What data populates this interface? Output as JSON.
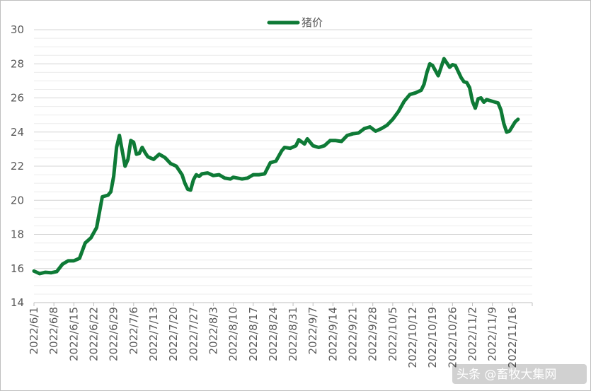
{
  "chart_data": {
    "type": "line",
    "title": "",
    "xlabel": "",
    "ylabel": "",
    "ylim": [
      14,
      30
    ],
    "y_ticks": [
      14,
      16,
      18,
      20,
      22,
      24,
      26,
      28,
      30
    ],
    "minor_grid": true,
    "legend_position": "top-center",
    "categories": [
      "2022/6/1",
      "2022/6/8",
      "2022/6/15",
      "2022/6/22",
      "2022/6/29",
      "2022/7/6",
      "2022/7/13",
      "2022/7/20",
      "2022/7/27",
      "2022/8/3",
      "2022/8/10",
      "2022/8/17",
      "2022/8/24",
      "2022/8/31",
      "2022/9/7",
      "2022/9/14",
      "2022/9/21",
      "2022/9/28",
      "2022/10/5",
      "2022/10/12",
      "2022/10/19",
      "2022/10/26",
      "2022/11/2",
      "2022/11/9",
      "2022/11/16"
    ],
    "series": [
      {
        "name": "猪价",
        "color": "#0e7a36",
        "points": [
          [
            "2022/6/1",
            15.85
          ],
          [
            "2022/6/3",
            15.7
          ],
          [
            "2022/6/5",
            15.78
          ],
          [
            "2022/6/7",
            15.75
          ],
          [
            "2022/6/9",
            15.82
          ],
          [
            "2022/6/11",
            16.25
          ],
          [
            "2022/6/13",
            16.45
          ],
          [
            "2022/6/15",
            16.45
          ],
          [
            "2022/6/17",
            16.6
          ],
          [
            "2022/6/19",
            17.5
          ],
          [
            "2022/6/21",
            17.8
          ],
          [
            "2022/6/23",
            18.4
          ],
          [
            "2022/6/25",
            20.2
          ],
          [
            "2022/6/27",
            20.3
          ],
          [
            "2022/6/28",
            20.5
          ],
          [
            "2022/6/29",
            21.4
          ],
          [
            "2022/6/30",
            23.1
          ],
          [
            "2022/7/1",
            23.8
          ],
          [
            "2022/7/2",
            22.9
          ],
          [
            "2022/7/3",
            22.0
          ],
          [
            "2022/7/4",
            22.4
          ],
          [
            "2022/7/5",
            23.5
          ],
          [
            "2022/7/6",
            23.4
          ],
          [
            "2022/7/7",
            22.7
          ],
          [
            "2022/7/8",
            22.75
          ],
          [
            "2022/7/9",
            23.1
          ],
          [
            "2022/7/10",
            22.8
          ],
          [
            "2022/7/11",
            22.55
          ],
          [
            "2022/7/13",
            22.4
          ],
          [
            "2022/7/15",
            22.7
          ],
          [
            "2022/7/17",
            22.5
          ],
          [
            "2022/7/19",
            22.15
          ],
          [
            "2022/7/21",
            22.0
          ],
          [
            "2022/7/23",
            21.5
          ],
          [
            "2022/7/24",
            21.0
          ],
          [
            "2022/7/25",
            20.65
          ],
          [
            "2022/7/26",
            20.6
          ],
          [
            "2022/7/27",
            21.2
          ],
          [
            "2022/7/28",
            21.5
          ],
          [
            "2022/7/29",
            21.4
          ],
          [
            "2022/7/30",
            21.55
          ],
          [
            "2022/8/1",
            21.6
          ],
          [
            "2022/8/3",
            21.45
          ],
          [
            "2022/8/5",
            21.5
          ],
          [
            "2022/8/7",
            21.3
          ],
          [
            "2022/8/9",
            21.25
          ],
          [
            "2022/8/10",
            21.35
          ],
          [
            "2022/8/13",
            21.25
          ],
          [
            "2022/8/15",
            21.3
          ],
          [
            "2022/8/17",
            21.5
          ],
          [
            "2022/8/19",
            21.5
          ],
          [
            "2022/8/21",
            21.55
          ],
          [
            "2022/8/23",
            22.2
          ],
          [
            "2022/8/25",
            22.3
          ],
          [
            "2022/8/27",
            22.9
          ],
          [
            "2022/8/28",
            23.1
          ],
          [
            "2022/8/30",
            23.05
          ],
          [
            "2022/9/1",
            23.2
          ],
          [
            "2022/9/2",
            23.55
          ],
          [
            "2022/9/4",
            23.3
          ],
          [
            "2022/9/5",
            23.6
          ],
          [
            "2022/9/7",
            23.2
          ],
          [
            "2022/9/9",
            23.1
          ],
          [
            "2022/9/11",
            23.2
          ],
          [
            "2022/9/13",
            23.5
          ],
          [
            "2022/9/15",
            23.5
          ],
          [
            "2022/9/17",
            23.45
          ],
          [
            "2022/9/19",
            23.8
          ],
          [
            "2022/9/21",
            23.9
          ],
          [
            "2022/9/23",
            23.95
          ],
          [
            "2022/9/25",
            24.2
          ],
          [
            "2022/9/27",
            24.3
          ],
          [
            "2022/9/29",
            24.05
          ],
          [
            "2022/10/1",
            24.2
          ],
          [
            "2022/10/3",
            24.4
          ],
          [
            "2022/10/5",
            24.75
          ],
          [
            "2022/10/7",
            25.2
          ],
          [
            "2022/10/9",
            25.8
          ],
          [
            "2022/10/11",
            26.2
          ],
          [
            "2022/10/13",
            26.3
          ],
          [
            "2022/10/15",
            26.45
          ],
          [
            "2022/10/16",
            26.8
          ],
          [
            "2022/10/17",
            27.5
          ],
          [
            "2022/10/18",
            28.0
          ],
          [
            "2022/10/19",
            27.9
          ],
          [
            "2022/10/21",
            27.3
          ],
          [
            "2022/10/23",
            28.3
          ],
          [
            "2022/10/25",
            27.8
          ],
          [
            "2022/10/26",
            27.95
          ],
          [
            "2022/10/27",
            27.9
          ],
          [
            "2022/10/29",
            27.2
          ],
          [
            "2022/10/30",
            26.95
          ],
          [
            "2022/10/31",
            26.9
          ],
          [
            "2022/11/1",
            26.6
          ],
          [
            "2022/11/2",
            25.8
          ],
          [
            "2022/11/3",
            25.4
          ],
          [
            "2022/11/4",
            25.95
          ],
          [
            "2022/11/5",
            26.0
          ],
          [
            "2022/11/6",
            25.75
          ],
          [
            "2022/11/7",
            25.9
          ],
          [
            "2022/11/8",
            25.85
          ],
          [
            "2022/11/10",
            25.75
          ],
          [
            "2022/11/11",
            25.7
          ],
          [
            "2022/11/12",
            25.3
          ],
          [
            "2022/11/13",
            24.5
          ],
          [
            "2022/11/14",
            24.0
          ],
          [
            "2022/11/15",
            24.05
          ],
          [
            "2022/11/17",
            24.6
          ],
          [
            "2022/11/18",
            24.75
          ]
        ]
      }
    ]
  },
  "watermark": {
    "text": "头条 @畜牧大集网"
  }
}
